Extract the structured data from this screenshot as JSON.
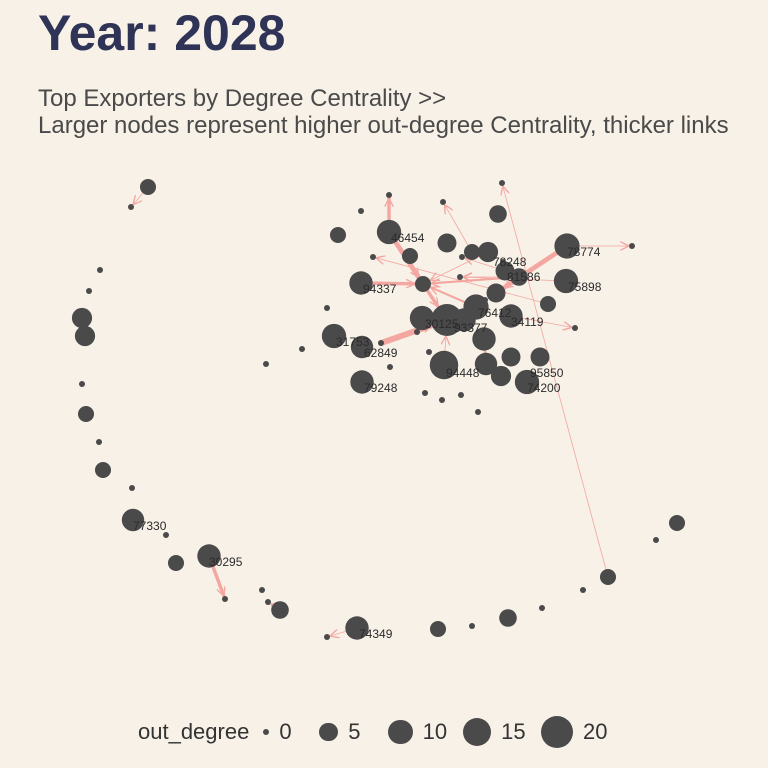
{
  "title": "Year: 2028",
  "subtitle_line1": "Top Exporters by Degree Centrality >>",
  "subtitle_line2": "Larger nodes represent higher out-degree Centrality, thicker links",
  "colors": {
    "node": "#4a4a4a",
    "edge": "#f4a6a0",
    "title": "#2f3457",
    "background": "#f7f1e7"
  },
  "legend": {
    "title": "out_degree",
    "items": [
      {
        "label": "0",
        "value": 0
      },
      {
        "label": "5",
        "value": 5
      },
      {
        "label": "10",
        "value": 10
      },
      {
        "label": "15",
        "value": 15
      },
      {
        "label": "20",
        "value": 20
      }
    ]
  },
  "network": {
    "nodes": [
      {
        "id": "n1",
        "out_degree": 3,
        "label": ""
      },
      {
        "id": "n2",
        "out_degree": 0,
        "label": ""
      },
      {
        "id": "n3",
        "out_degree": 0,
        "label": ""
      },
      {
        "id": "n4",
        "out_degree": 0,
        "label": ""
      },
      {
        "id": "n5",
        "out_degree": 6,
        "label": ""
      },
      {
        "id": "n6",
        "out_degree": 6,
        "label": ""
      },
      {
        "id": "n7",
        "out_degree": 0,
        "label": ""
      },
      {
        "id": "n8",
        "out_degree": 3,
        "label": ""
      },
      {
        "id": "n9",
        "out_degree": 0,
        "label": ""
      },
      {
        "id": "n10",
        "out_degree": 3,
        "label": ""
      },
      {
        "id": "n11",
        "out_degree": 0,
        "label": ""
      },
      {
        "id": "n12",
        "out_degree": 8,
        "label": "77330"
      },
      {
        "id": "n13",
        "out_degree": 0,
        "label": ""
      },
      {
        "id": "n14",
        "out_degree": 3,
        "label": ""
      },
      {
        "id": "n15",
        "out_degree": 9,
        "label": "30295"
      },
      {
        "id": "n16",
        "out_degree": 0,
        "label": ""
      },
      {
        "id": "n17",
        "out_degree": 0,
        "label": ""
      },
      {
        "id": "n18",
        "out_degree": 4,
        "label": ""
      },
      {
        "id": "n19",
        "out_degree": 0,
        "label": ""
      },
      {
        "id": "n20",
        "out_degree": 0,
        "label": ""
      },
      {
        "id": "n21",
        "out_degree": 9,
        "label": "74349"
      },
      {
        "id": "n22",
        "out_degree": 3,
        "label": ""
      },
      {
        "id": "n23",
        "out_degree": 0,
        "label": ""
      },
      {
        "id": "n24",
        "out_degree": 4,
        "label": ""
      },
      {
        "id": "n25",
        "out_degree": 0,
        "label": ""
      },
      {
        "id": "n26",
        "out_degree": 0,
        "label": ""
      },
      {
        "id": "n27",
        "out_degree": 3,
        "label": ""
      },
      {
        "id": "n28",
        "out_degree": 0,
        "label": ""
      },
      {
        "id": "n29",
        "out_degree": 3,
        "label": ""
      },
      {
        "id": "n30",
        "out_degree": 0,
        "label": ""
      },
      {
        "id": "n31",
        "out_degree": 0,
        "label": ""
      },
      {
        "id": "n32",
        "out_degree": 4,
        "label": ""
      },
      {
        "id": "n33",
        "out_degree": 0,
        "label": ""
      },
      {
        "id": "n34",
        "out_degree": 10,
        "label": "46454"
      },
      {
        "id": "n35",
        "out_degree": 0,
        "label": ""
      },
      {
        "id": "n36",
        "out_degree": 3,
        "label": ""
      },
      {
        "id": "n37",
        "out_degree": 3,
        "label": ""
      },
      {
        "id": "n38",
        "out_degree": 0,
        "label": ""
      },
      {
        "id": "n39",
        "out_degree": 0,
        "label": ""
      },
      {
        "id": "n40",
        "out_degree": 5,
        "label": ""
      },
      {
        "id": "n41",
        "out_degree": 3,
        "label": ""
      },
      {
        "id": "n42",
        "out_degree": 6,
        "label": ""
      },
      {
        "id": "n43",
        "out_degree": 0,
        "label": "78248"
      },
      {
        "id": "n44",
        "out_degree": 5,
        "label": ""
      },
      {
        "id": "n45",
        "out_degree": 4,
        "label": "81586"
      },
      {
        "id": "n46",
        "out_degree": 11,
        "label": "78774"
      },
      {
        "id": "n47",
        "out_degree": 0,
        "label": ""
      },
      {
        "id": "n48",
        "out_degree": 9,
        "label": "94337"
      },
      {
        "id": "n49",
        "out_degree": 3,
        "label": ""
      },
      {
        "id": "n50",
        "out_degree": 0,
        "label": ""
      },
      {
        "id": "n51",
        "out_degree": 10,
        "label": "75898"
      },
      {
        "id": "n52",
        "out_degree": 0,
        "label": ""
      },
      {
        "id": "n53",
        "out_degree": 5,
        "label": ""
      },
      {
        "id": "n54",
        "out_degree": 11,
        "label": "76412"
      },
      {
        "id": "n55",
        "out_degree": 0,
        "label": ""
      },
      {
        "id": "n56",
        "out_degree": 3,
        "label": ""
      },
      {
        "id": "n57",
        "out_degree": 9,
        "label": "34119"
      },
      {
        "id": "n58",
        "out_degree": 10,
        "label": ""
      },
      {
        "id": "n59",
        "out_degree": 20,
        "label": "30125"
      },
      {
        "id": "n60",
        "out_degree": 9,
        "label": "93377"
      },
      {
        "id": "n61",
        "out_degree": 0,
        "label": ""
      },
      {
        "id": "n62",
        "out_degree": 0,
        "label": ""
      },
      {
        "id": "n63",
        "out_degree": 10,
        "label": "31753"
      },
      {
        "id": "n64",
        "out_degree": 0,
        "label": ""
      },
      {
        "id": "n65",
        "out_degree": 9,
        "label": ""
      },
      {
        "id": "n66",
        "out_degree": 0,
        "label": ""
      },
      {
        "id": "n67",
        "out_degree": 8,
        "label": "62849"
      },
      {
        "id": "n68",
        "out_degree": 0,
        "label": ""
      },
      {
        "id": "n69",
        "out_degree": 15,
        "label": "94448"
      },
      {
        "id": "n70",
        "out_degree": 8,
        "label": ""
      },
      {
        "id": "n71",
        "out_degree": 5,
        "label": ""
      },
      {
        "id": "n72",
        "out_degree": 5,
        "label": "95850"
      },
      {
        "id": "n73",
        "out_degree": 6,
        "label": ""
      },
      {
        "id": "n74",
        "out_degree": 9,
        "label": "79248"
      },
      {
        "id": "n75",
        "out_degree": 0,
        "label": ""
      },
      {
        "id": "n76",
        "out_degree": 0,
        "label": ""
      },
      {
        "id": "n77",
        "out_degree": 0,
        "label": ""
      },
      {
        "id": "n78",
        "out_degree": 10,
        "label": "74200"
      },
      {
        "id": "n79",
        "out_degree": 0,
        "label": ""
      },
      {
        "id": "n80",
        "out_degree": 0,
        "label": ""
      },
      {
        "id": "n81",
        "out_degree": 0,
        "label": ""
      },
      {
        "id": "n82",
        "out_degree": 0,
        "label": ""
      }
    ],
    "edges": [
      {
        "from": "n1",
        "to": "n2",
        "weight": 1
      },
      {
        "from": "n15",
        "to": "n16",
        "weight": 3
      },
      {
        "from": "n18",
        "to": "n19",
        "weight": 1
      },
      {
        "from": "n21",
        "to": "n20",
        "weight": 1
      },
      {
        "from": "n34",
        "to": "n30",
        "weight": 3
      },
      {
        "from": "n34",
        "to": "n49",
        "weight": 4
      },
      {
        "from": "n41",
        "to": "n31",
        "weight": 1
      },
      {
        "from": "n27",
        "to": "n35",
        "weight": 1
      },
      {
        "from": "n42",
        "to": "n49",
        "weight": 1
      },
      {
        "from": "n48",
        "to": "n49",
        "weight": 3
      },
      {
        "from": "n45",
        "to": "n49",
        "weight": 2
      },
      {
        "from": "n46",
        "to": "n47",
        "weight": 1
      },
      {
        "from": "n46",
        "to": "n53",
        "weight": 4
      },
      {
        "from": "n49",
        "to": "n59",
        "weight": 3
      },
      {
        "from": "n54",
        "to": "n52",
        "weight": 3
      },
      {
        "from": "n57",
        "to": "n55",
        "weight": 1
      },
      {
        "from": "n69",
        "to": "n59",
        "weight": 1
      },
      {
        "from": "n70",
        "to": "n65",
        "weight": 1
      },
      {
        "from": "n64",
        "to": "n59",
        "weight": 5
      },
      {
        "from": "n58",
        "to": "n59",
        "weight": 2
      },
      {
        "from": "n45",
        "to": "n50",
        "weight": 1
      },
      {
        "from": "n44",
        "to": "n39",
        "weight": 1
      },
      {
        "from": "n56",
        "to": "n38",
        "weight": 1
      },
      {
        "from": "n51",
        "to": "n50",
        "weight": 1
      },
      {
        "from": "n54",
        "to": "n49",
        "weight": 2
      }
    ]
  }
}
